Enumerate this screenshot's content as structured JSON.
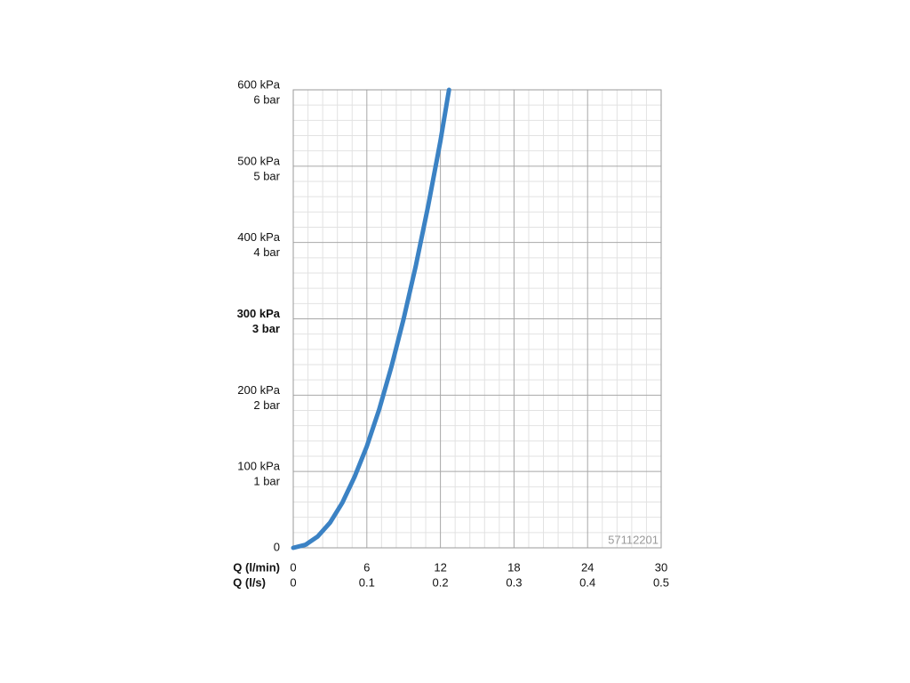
{
  "chart_data": {
    "type": "line",
    "x_axis_label": "Q (l/min)",
    "x2_axis_label": "Q (l/s)",
    "annotation": "57112201",
    "x": [
      0,
      1,
      2,
      3,
      4,
      5,
      6,
      7,
      8,
      9,
      10,
      11,
      12,
      12.7
    ],
    "series": [
      {
        "color": "#3b82c4",
        "values": [
          0,
          4,
          15,
          33,
          59,
          93,
          133,
          181,
          237,
          300,
          370,
          448,
          533,
          600
        ]
      }
    ],
    "xlim": [
      0,
      30
    ],
    "xticks": [
      0,
      6,
      12,
      18,
      24,
      30
    ],
    "x2lim": [
      0,
      0.5
    ],
    "x2ticks": [
      0,
      0.1,
      0.2,
      0.3,
      0.4,
      0.5
    ],
    "ylim": [
      0,
      600
    ],
    "yticks": [
      0,
      {
        "value": 100,
        "label": "100 kPa"
      },
      {
        "value": 200,
        "label": "200 kPa"
      },
      {
        "value": 300,
        "label": "300 kPa"
      },
      {
        "value": 400,
        "label": "400 kPa"
      },
      {
        "value": 500,
        "label": "500 kPa"
      },
      {
        "value": 600,
        "label": "600 kPa"
      }
    ],
    "y2lim": [
      0,
      6
    ],
    "y2ticks": [
      {
        "value": 1,
        "label": "1 bar"
      },
      {
        "value": 2,
        "label": "2 bar"
      },
      {
        "value": 3,
        "label": "3 bar"
      },
      {
        "value": 4,
        "label": "4 bar"
      },
      {
        "value": 5,
        "label": "5 bar"
      },
      {
        "value": 6,
        "label": "6 bar"
      }
    ],
    "bold_ytick": 300,
    "grid": true,
    "minor_grid": true
  }
}
